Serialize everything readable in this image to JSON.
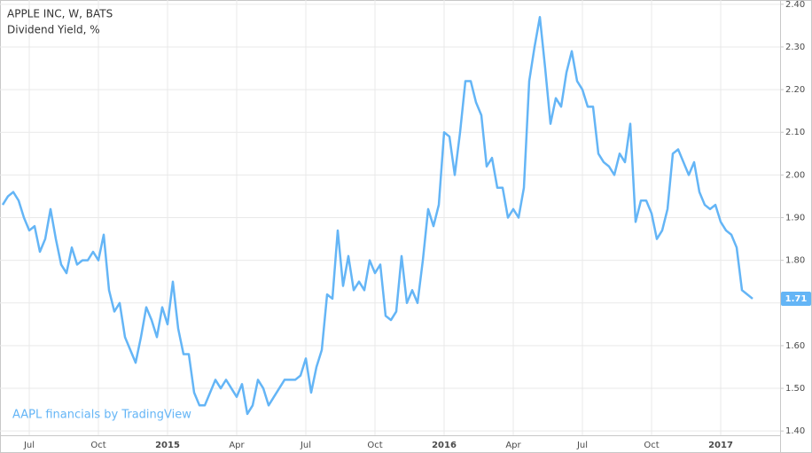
{
  "chart_data": {
    "type": "line",
    "title": "APPLE INC, W, BATS",
    "subtitle": "Dividend Yield, %",
    "watermark": "AAPL financials by TradingView",
    "categories": [
      null,
      null,
      null,
      null,
      null,
      "Jul",
      null,
      null,
      null,
      null,
      null,
      null,
      null,
      null,
      null,
      null,
      null,
      null,
      "Oct",
      null,
      null,
      null,
      null,
      null,
      null,
      null,
      null,
      null,
      null,
      null,
      null,
      "2015",
      null,
      null,
      null,
      null,
      null,
      null,
      null,
      null,
      null,
      null,
      null,
      null,
      "Apr",
      null,
      null,
      null,
      null,
      null,
      null,
      null,
      null,
      null,
      null,
      null,
      null,
      "Jul",
      null,
      null,
      null,
      null,
      null,
      null,
      null,
      null,
      null,
      null,
      null,
      null,
      "Oct",
      null,
      null,
      null,
      null,
      null,
      null,
      null,
      null,
      null,
      null,
      null,
      null,
      "2016",
      null,
      null,
      null,
      null,
      null,
      null,
      null,
      null,
      null,
      null,
      null,
      null,
      "Apr",
      null,
      null,
      null,
      null,
      null,
      null,
      null,
      null,
      null,
      null,
      null,
      null,
      "Jul",
      null,
      null,
      null,
      null,
      null,
      null,
      null,
      null,
      null,
      null,
      null,
      null,
      "Oct",
      null,
      null,
      null,
      null,
      null,
      null,
      null,
      null,
      null,
      null,
      null,
      null,
      "2017",
      null,
      null,
      null,
      null,
      null,
      null
    ],
    "values": [
      1.93,
      1.95,
      1.96,
      1.94,
      1.9,
      1.87,
      1.88,
      1.82,
      1.85,
      1.92,
      1.85,
      1.79,
      1.77,
      1.83,
      1.79,
      1.8,
      1.8,
      1.82,
      1.8,
      1.86,
      1.73,
      1.68,
      1.7,
      1.62,
      1.59,
      1.56,
      1.62,
      1.69,
      1.66,
      1.62,
      1.69,
      1.65,
      1.75,
      1.64,
      1.58,
      1.58,
      1.49,
      1.46,
      1.46,
      1.49,
      1.52,
      1.5,
      1.52,
      1.5,
      1.48,
      1.51,
      1.44,
      1.46,
      1.52,
      1.5,
      1.46,
      1.48,
      1.5,
      1.52,
      1.52,
      1.52,
      1.53,
      1.57,
      1.49,
      1.55,
      1.59,
      1.72,
      1.71,
      1.87,
      1.74,
      1.81,
      1.73,
      1.75,
      1.73,
      1.8,
      1.77,
      1.79,
      1.67,
      1.66,
      1.68,
      1.81,
      1.7,
      1.73,
      1.7,
      1.8,
      1.92,
      1.88,
      1.93,
      2.1,
      2.09,
      2.0,
      2.1,
      2.22,
      2.22,
      2.17,
      2.14,
      2.02,
      2.04,
      1.97,
      1.97,
      1.9,
      1.92,
      1.9,
      1.97,
      2.22,
      2.3,
      2.37,
      2.25,
      2.12,
      2.18,
      2.16,
      2.24,
      2.29,
      2.22,
      2.2,
      2.16,
      2.16,
      2.05,
      2.03,
      2.02,
      2.0,
      2.05,
      2.03,
      2.12,
      1.89,
      1.94,
      1.94,
      1.91,
      1.85,
      1.87,
      1.92,
      2.05,
      2.06,
      2.03,
      2.0,
      2.03,
      1.96,
      1.93,
      1.92,
      1.93,
      1.89,
      1.87,
      1.86,
      1.83,
      1.73,
      1.72,
      1.71
    ],
    "color": "#64b5f6",
    "ylim": [
      1.39,
      2.41
    ],
    "yticks": [
      {
        "value": 1.4,
        "label": "1.40"
      },
      {
        "value": 1.5,
        "label": "1.50"
      },
      {
        "value": 1.6,
        "label": "1.60"
      },
      {
        "value": 1.7,
        "label": "1.70"
      },
      {
        "value": 1.8,
        "label": "1.80"
      },
      {
        "value": 1.9,
        "label": "1.90"
      },
      {
        "value": 2.0,
        "label": "2.00"
      },
      {
        "value": 2.1,
        "label": "2.10"
      },
      {
        "value": 2.2,
        "label": "2.20"
      },
      {
        "value": 2.3,
        "label": "2.30"
      },
      {
        "value": 2.4,
        "label": "2.40"
      }
    ],
    "grid": true
  }
}
